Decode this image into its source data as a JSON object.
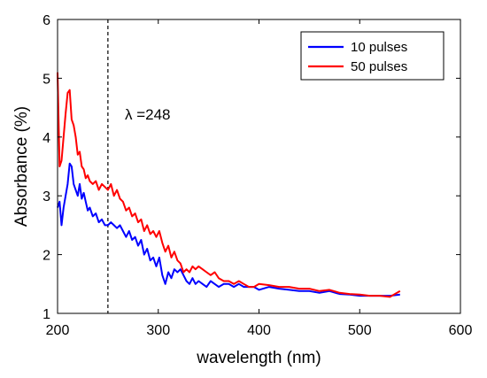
{
  "chart_data": {
    "type": "line",
    "title": "",
    "xlabel": "wavelength (nm)",
    "ylabel": "Absorbance (%)",
    "xlim": [
      200,
      600
    ],
    "ylim": [
      1,
      6
    ],
    "xticks": [
      "200",
      "300",
      "400",
      "500",
      "600"
    ],
    "yticks": [
      "1",
      "2",
      "3",
      "4",
      "5",
      "6"
    ],
    "grid": false,
    "legend_position": "top-right",
    "annotation": {
      "text": "λ =248",
      "x": 250
    },
    "series": [
      {
        "name": "10 pulses",
        "color": "#0000ff",
        "x": [
          200,
          202,
          204,
          206,
          208,
          210,
          212,
          214,
          216,
          218,
          220,
          222,
          224,
          226,
          228,
          230,
          232,
          235,
          238,
          241,
          244,
          247,
          250,
          253,
          256,
          259,
          262,
          265,
          268,
          271,
          274,
          277,
          280,
          283,
          286,
          289,
          292,
          295,
          298,
          301,
          304,
          307,
          310,
          313,
          316,
          319,
          322,
          325,
          328,
          331,
          334,
          337,
          340,
          344,
          348,
          352,
          356,
          360,
          365,
          370,
          375,
          380,
          385,
          390,
          395,
          400,
          410,
          420,
          430,
          440,
          450,
          460,
          470,
          480,
          490,
          500,
          510,
          520,
          530,
          540
        ],
        "y": [
          2.8,
          2.9,
          2.5,
          2.8,
          3.0,
          3.2,
          3.55,
          3.5,
          3.2,
          3.1,
          3.0,
          3.2,
          2.95,
          3.05,
          2.9,
          2.75,
          2.8,
          2.65,
          2.7,
          2.55,
          2.6,
          2.5,
          2.5,
          2.55,
          2.5,
          2.45,
          2.5,
          2.4,
          2.3,
          2.4,
          2.25,
          2.3,
          2.15,
          2.25,
          2.0,
          2.1,
          1.9,
          1.95,
          1.8,
          1.95,
          1.65,
          1.5,
          1.7,
          1.6,
          1.75,
          1.7,
          1.75,
          1.65,
          1.55,
          1.5,
          1.6,
          1.5,
          1.55,
          1.5,
          1.45,
          1.55,
          1.5,
          1.45,
          1.5,
          1.5,
          1.45,
          1.5,
          1.45,
          1.45,
          1.45,
          1.4,
          1.45,
          1.42,
          1.4,
          1.38,
          1.38,
          1.35,
          1.38,
          1.33,
          1.32,
          1.3,
          1.3,
          1.3,
          1.3,
          1.32
        ]
      },
      {
        "name": "50 pulses",
        "color": "#ff0000",
        "x": [
          200,
          202,
          204,
          206,
          208,
          210,
          212,
          214,
          216,
          218,
          220,
          222,
          224,
          226,
          228,
          230,
          232,
          235,
          238,
          241,
          244,
          247,
          250,
          253,
          256,
          259,
          262,
          265,
          268,
          271,
          274,
          277,
          280,
          283,
          286,
          289,
          292,
          295,
          298,
          301,
          304,
          307,
          310,
          313,
          316,
          319,
          322,
          325,
          328,
          331,
          334,
          337,
          340,
          344,
          348,
          352,
          356,
          360,
          365,
          370,
          375,
          380,
          385,
          390,
          395,
          400,
          410,
          420,
          430,
          440,
          450,
          460,
          470,
          480,
          490,
          500,
          510,
          520,
          530,
          540
        ],
        "y": [
          5.1,
          3.5,
          3.6,
          4.0,
          4.4,
          4.75,
          4.8,
          4.3,
          4.2,
          4.0,
          3.7,
          3.75,
          3.5,
          3.45,
          3.3,
          3.35,
          3.25,
          3.2,
          3.25,
          3.1,
          3.2,
          3.15,
          3.1,
          3.2,
          3.0,
          3.1,
          2.95,
          2.9,
          2.75,
          2.8,
          2.65,
          2.7,
          2.55,
          2.6,
          2.4,
          2.5,
          2.35,
          2.4,
          2.3,
          2.4,
          2.2,
          2.05,
          2.15,
          1.95,
          2.05,
          1.9,
          1.85,
          1.7,
          1.75,
          1.7,
          1.8,
          1.75,
          1.8,
          1.75,
          1.7,
          1.65,
          1.7,
          1.6,
          1.55,
          1.55,
          1.5,
          1.55,
          1.5,
          1.45,
          1.45,
          1.5,
          1.48,
          1.45,
          1.45,
          1.42,
          1.42,
          1.38,
          1.4,
          1.35,
          1.33,
          1.32,
          1.3,
          1.3,
          1.28,
          1.38
        ]
      }
    ]
  }
}
